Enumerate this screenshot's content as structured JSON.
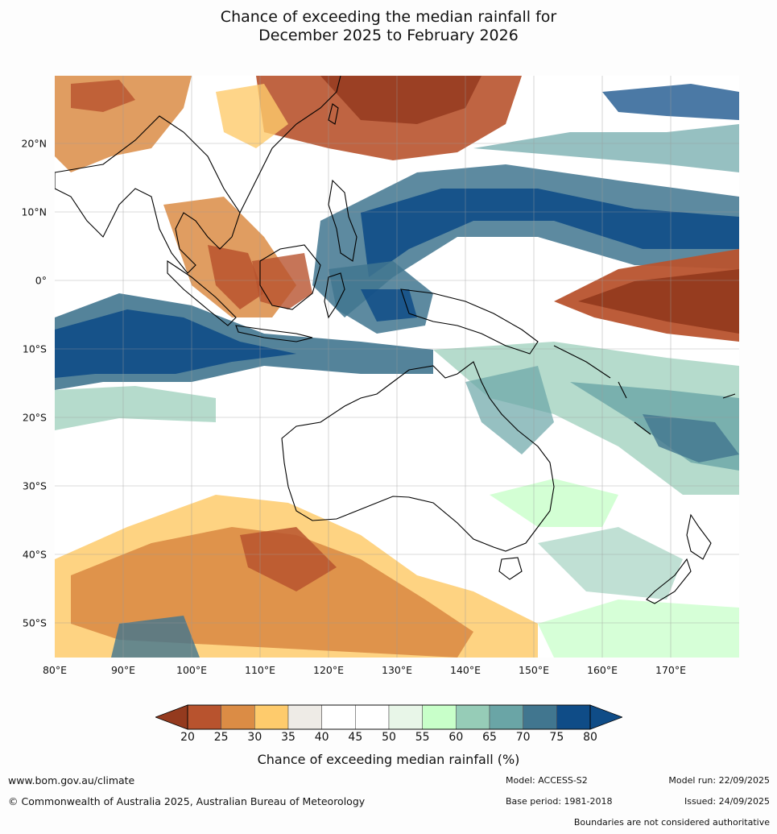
{
  "title": {
    "line1": "Chance of exceeding the median rainfall for",
    "line2": "December 2025 to February 2026"
  },
  "map": {
    "lat_labels": [
      "20°N",
      "10°N",
      "0°",
      "10°S",
      "20°S",
      "30°S",
      "40°S",
      "50°S"
    ],
    "lon_labels": [
      "80°E",
      "90°E",
      "100°E",
      "110°E",
      "120°E",
      "130°E",
      "140°E",
      "150°E",
      "160°E",
      "170°E"
    ]
  },
  "colorbar": {
    "ticks": [
      "20",
      "25",
      "30",
      "35",
      "40",
      "45",
      "50",
      "55",
      "60",
      "65",
      "70",
      "75",
      "80"
    ],
    "colors": [
      "#943a1e",
      "#b8532e",
      "#db8c45",
      "#fecb6c",
      "#eeebe6",
      "#ffffff",
      "#ffffff",
      "#e8f6e8",
      "#c8ffc9",
      "#96ccb7",
      "#6aa5a6",
      "#41768f",
      "#0f4c87"
    ],
    "label": "Chance of exceeding median rainfall (%)"
  },
  "footer": {
    "website": "www.bom.gov.au/climate",
    "copyright": "© Commonwealth of Australia 2025, Australian Bureau of Meteorology",
    "model": "Model: ACCESS-S2",
    "base_period": "Base period: 1981-2018",
    "model_run": "Model run: 22/09/2025",
    "issued": "Issued: 24/09/2025",
    "boundaries_note": "Boundaries are not considered authoritative"
  }
}
